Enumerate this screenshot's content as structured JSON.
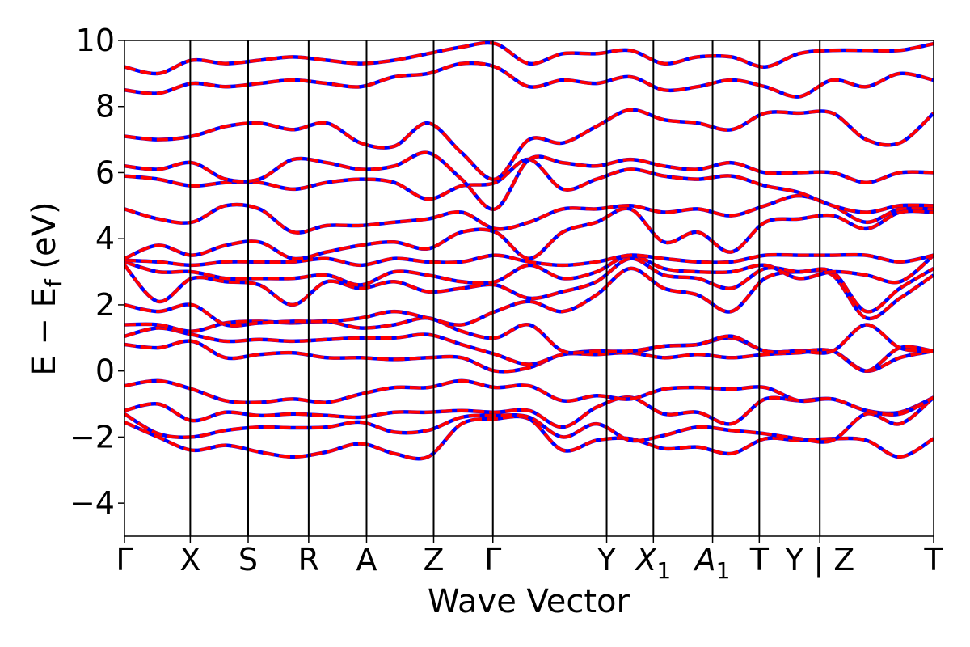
{
  "chart_data": {
    "type": "line",
    "title": "",
    "xlabel": "Wave Vector",
    "ylabel": "E − E",
    "ylabel_subscript": "f",
    "ylabel_unit": "(eV)",
    "ylim": [
      -5,
      10
    ],
    "yticks": [
      {
        "value": -4,
        "label": "−4"
      },
      {
        "value": -2,
        "label": "−2"
      },
      {
        "value": 0,
        "label": "0"
      },
      {
        "value": 2,
        "label": "2"
      },
      {
        "value": 4,
        "label": "4"
      },
      {
        "value": 6,
        "label": "6"
      },
      {
        "value": 8,
        "label": "8"
      },
      {
        "value": 10,
        "label": "10"
      }
    ],
    "grid": false,
    "legend": "none",
    "kpath_positions": [
      0,
      1.0,
      1.88,
      2.8,
      3.68,
      4.7,
      5.6,
      7.33,
      8.04,
      8.94,
      9.65,
      10.57,
      12.3
    ],
    "kpath_labels": [
      {
        "text": "Γ",
        "sub": "",
        "italic": false
      },
      {
        "text": "X",
        "sub": "",
        "italic": false
      },
      {
        "text": "S",
        "sub": "",
        "italic": false
      },
      {
        "text": "R",
        "sub": "",
        "italic": false
      },
      {
        "text": "A",
        "sub": "",
        "italic": false
      },
      {
        "text": "Z",
        "sub": "",
        "italic": false
      },
      {
        "text": "Γ",
        "sub": "",
        "italic": false
      },
      {
        "text": "Y",
        "sub": "",
        "italic": false
      },
      {
        "text": "X",
        "sub": "1",
        "italic": true
      },
      {
        "text": "A",
        "sub": "1",
        "italic": true
      },
      {
        "text": "T",
        "sub": "",
        "italic": false
      },
      {
        "text": "Y | Z",
        "sub": "",
        "italic": false
      },
      {
        "text": "T",
        "sub": "",
        "italic": false
      }
    ],
    "series_styles": [
      {
        "name": "",
        "color": "#0000ff",
        "style": "solid"
      },
      {
        "name": "",
        "color": "#ff0000",
        "style": "dashed"
      }
    ],
    "bands": [
      [
        -1.55,
        -2.0,
        -2.4,
        -2.25,
        -2.45,
        -2.6,
        -2.45,
        -2.2,
        -2.5,
        -2.6,
        -1.6,
        -1.45,
        -1.45,
        -2.4,
        -2.1,
        -2.05,
        -2.35,
        -2.3,
        -2.5,
        -2.05,
        -2.1,
        -2.05,
        -2.1,
        -2.6,
        -2.05
      ],
      [
        -1.3,
        -1.9,
        -2.0,
        -1.8,
        -1.7,
        -1.72,
        -1.7,
        -1.55,
        -1.85,
        -1.8,
        -1.4,
        -1.35,
        -1.4,
        -2.0,
        -1.6,
        -2.1,
        -1.95,
        -1.7,
        -1.8,
        -1.9,
        -2.05,
        -2.1,
        -1.3,
        -1.6,
        -0.8
      ],
      [
        -1.2,
        -1.0,
        -1.5,
        -1.25,
        -1.35,
        -1.3,
        -1.35,
        -1.4,
        -1.25,
        -1.25,
        -1.2,
        -1.25,
        -1.2,
        -1.7,
        -1.1,
        -0.8,
        -1.3,
        -1.25,
        -1.6,
        -0.85,
        -0.9,
        -0.85,
        -1.2,
        -1.25,
        -0.8
      ],
      [
        -0.45,
        -0.3,
        -0.55,
        -0.9,
        -0.95,
        -0.85,
        -0.95,
        -0.7,
        -0.5,
        -0.5,
        -0.3,
        -0.5,
        -0.45,
        -0.9,
        -0.75,
        -0.85,
        -0.55,
        -0.5,
        -0.55,
        -0.5,
        -0.9,
        -0.85,
        -1.2,
        -1.3,
        -0.8
      ],
      [
        0.8,
        0.7,
        0.9,
        0.4,
        0.5,
        0.55,
        0.4,
        0.4,
        0.35,
        0.4,
        0.4,
        0.0,
        0.1,
        0.5,
        0.5,
        0.55,
        0.4,
        0.5,
        0.4,
        0.5,
        0.55,
        0.6,
        0.0,
        0.4,
        0.6
      ],
      [
        1.05,
        1.3,
        1.1,
        0.9,
        0.95,
        0.9,
        0.95,
        1.0,
        1.0,
        1.1,
        0.8,
        0.5,
        0.2,
        0.5,
        0.6,
        0.55,
        0.75,
        0.8,
        1.0,
        0.6,
        0.6,
        0.6,
        0.0,
        0.7,
        0.6
      ],
      [
        1.4,
        1.4,
        1.2,
        1.45,
        1.5,
        1.45,
        1.5,
        1.3,
        1.4,
        1.6,
        1.2,
        1.0,
        1.4,
        0.6,
        0.6,
        0.6,
        0.75,
        0.8,
        1.05,
        0.6,
        0.6,
        0.6,
        1.4,
        0.7,
        0.6
      ],
      [
        2.0,
        1.8,
        2.0,
        1.4,
        1.45,
        1.5,
        1.5,
        1.6,
        1.8,
        1.6,
        1.4,
        1.8,
        2.1,
        1.8,
        2.3,
        3.1,
        2.5,
        2.3,
        1.8,
        2.8,
        3.0,
        2.9,
        1.6,
        2.2,
        2.9
      ],
      [
        3.2,
        2.1,
        2.8,
        2.7,
        2.6,
        2.0,
        2.7,
        2.5,
        2.7,
        2.4,
        2.5,
        2.6,
        2.2,
        2.4,
        2.7,
        3.4,
        2.9,
        2.8,
        2.5,
        3.1,
        3.0,
        3.0,
        1.8,
        2.5,
        3.1
      ],
      [
        3.3,
        3.0,
        3.0,
        2.8,
        2.8,
        2.8,
        2.9,
        2.6,
        3.0,
        2.9,
        2.7,
        2.7,
        3.2,
        2.8,
        3.0,
        3.5,
        3.1,
        3.0,
        3.0,
        3.2,
        2.8,
        3.0,
        2.9,
        2.7,
        3.5
      ],
      [
        3.35,
        3.3,
        3.2,
        3.3,
        3.3,
        3.3,
        3.4,
        3.2,
        3.4,
        3.3,
        3.3,
        3.5,
        3.3,
        3.2,
        3.3,
        3.5,
        3.4,
        3.3,
        3.3,
        3.5,
        3.5,
        3.5,
        3.5,
        3.3,
        3.5
      ],
      [
        3.4,
        3.8,
        3.5,
        3.8,
        3.9,
        3.4,
        3.6,
        3.8,
        3.9,
        3.7,
        4.2,
        4.2,
        3.4,
        4.2,
        4.5,
        4.9,
        3.9,
        4.2,
        3.6,
        4.5,
        4.6,
        4.7,
        4.3,
        4.8,
        4.8
      ],
      [
        4.9,
        4.6,
        4.5,
        5.0,
        4.9,
        4.2,
        4.4,
        4.4,
        4.5,
        4.6,
        4.8,
        4.3,
        4.5,
        4.9,
        4.9,
        5.0,
        4.8,
        4.9,
        4.7,
        5.0,
        5.3,
        5.0,
        4.5,
        4.9,
        4.9
      ],
      [
        5.9,
        5.8,
        5.6,
        5.7,
        5.7,
        5.5,
        5.7,
        5.8,
        5.7,
        5.2,
        5.6,
        5.7,
        6.4,
        5.5,
        5.8,
        6.1,
        5.9,
        5.8,
        5.9,
        5.6,
        5.4,
        5.0,
        4.8,
        5.0,
        5.0
      ],
      [
        6.2,
        6.1,
        6.3,
        5.8,
        5.8,
        6.4,
        6.3,
        6.1,
        6.2,
        6.6,
        5.8,
        4.9,
        6.4,
        6.3,
        6.2,
        6.4,
        6.2,
        6.1,
        6.3,
        6.0,
        6.0,
        6.0,
        5.7,
        6.0,
        6.0
      ],
      [
        7.1,
        7.0,
        7.1,
        7.4,
        7.5,
        7.3,
        7.5,
        6.9,
        6.8,
        7.5,
        6.6,
        5.8,
        7.0,
        6.9,
        7.4,
        7.9,
        7.6,
        7.5,
        7.3,
        7.8,
        7.8,
        7.8,
        7.0,
        6.9,
        7.8
      ],
      [
        8.5,
        8.4,
        8.7,
        8.6,
        8.7,
        8.8,
        8.7,
        8.6,
        8.9,
        9.0,
        9.3,
        9.2,
        8.6,
        8.8,
        8.7,
        8.9,
        8.5,
        8.6,
        8.8,
        8.6,
        8.3,
        8.8,
        8.6,
        9.0,
        8.8
      ],
      [
        9.2,
        9.0,
        9.4,
        9.3,
        9.4,
        9.5,
        9.4,
        9.3,
        9.4,
        9.6,
        9.8,
        9.9,
        9.3,
        9.6,
        9.6,
        9.7,
        9.3,
        9.5,
        9.5,
        9.2,
        9.6,
        9.7,
        9.7,
        9.7,
        9.9
      ]
    ]
  }
}
